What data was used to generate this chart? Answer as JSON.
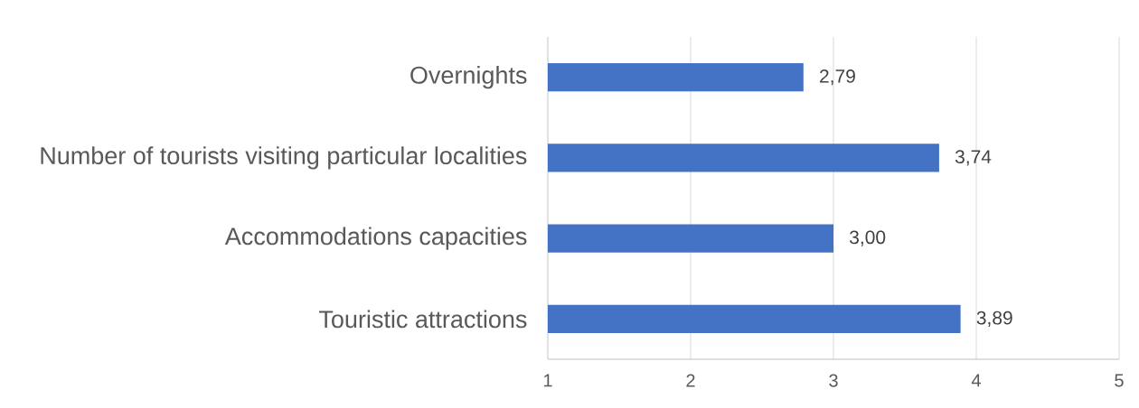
{
  "chart_data": {
    "type": "bar",
    "orientation": "horizontal",
    "categories": [
      "Overnights",
      "Number of tourists visiting particular localities",
      "Accommodations capacities",
      "Touristic attractions"
    ],
    "values": [
      2.79,
      3.74,
      3.0,
      3.89
    ],
    "value_labels": [
      "2,79",
      "3,74",
      "3,00",
      "3,89"
    ],
    "color": "#4472c4",
    "xlim": [
      1,
      5
    ],
    "xticks": [
      1,
      2,
      3,
      4,
      5
    ],
    "grid": "x"
  }
}
